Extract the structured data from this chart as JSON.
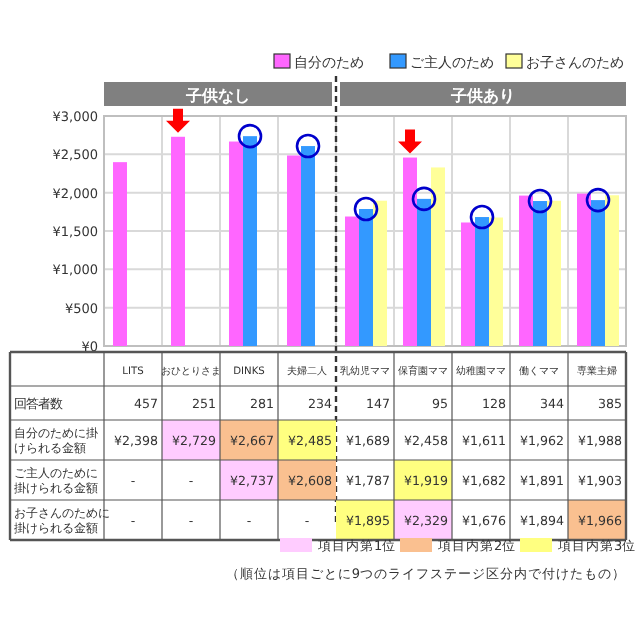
{
  "chart_data": {
    "type": "bar",
    "categories": [
      "LITS",
      "おひとりさま",
      "DINKS",
      "夫婦二人",
      "乳幼児ママ",
      "保育園ママ",
      "幼稚園ママ",
      "働くママ",
      "専業主婦"
    ],
    "series": [
      {
        "name": "自分のため",
        "color": "#ff66ff",
        "values": [
          2398,
          2729,
          2667,
          2485,
          1689,
          2458,
          1611,
          1962,
          1988
        ],
        "value_labels": [
          "¥2,398",
          "¥2,729",
          "¥2,667",
          "¥2,485",
          "¥1,689",
          "¥2,458",
          "¥1,611",
          "¥1,962",
          "¥1,988"
        ]
      },
      {
        "name": "ご主人のため",
        "color": "#3399ff",
        "values": [
          null,
          null,
          2737,
          2608,
          1787,
          1919,
          1682,
          1891,
          1903
        ],
        "value_labels": [
          "-",
          "-",
          "¥2,737",
          "¥2,608",
          "¥1,787",
          "¥1,919",
          "¥1,682",
          "¥1,891",
          "¥1,903"
        ]
      },
      {
        "name": "お子さんのため",
        "color": "#ffff99",
        "values": [
          null,
          null,
          null,
          null,
          1895,
          2329,
          1676,
          1894,
          1966
        ],
        "value_labels": [
          "-",
          "-",
          "-",
          "-",
          "¥1,895",
          "¥2,329",
          "¥1,676",
          "¥1,894",
          "¥1,966"
        ]
      }
    ],
    "ylim": [
      0,
      3000
    ],
    "yticks": [
      {
        "value": 0,
        "label": "¥0"
      },
      {
        "value": 500,
        "label": "¥500"
      },
      {
        "value": 1000,
        "label": "¥1,000"
      },
      {
        "value": 1500,
        "label": "¥1,500"
      },
      {
        "value": 2000,
        "label": "¥2,000"
      },
      {
        "value": 2500,
        "label": "¥2,500"
      },
      {
        "value": 3000,
        "label": "¥3,000"
      }
    ],
    "grid": true,
    "legend": "top right",
    "annotations": [
      "子供なし",
      "子供あり",
      "回答者数",
      "457",
      "251",
      "281",
      "234",
      "147",
      "95",
      "128",
      "344",
      "385",
      "自分のために掛けられる金額",
      "ご主人のために掛けられる金額",
      "お子さんのために掛けられる金額",
      "項目内第1位",
      "項目内第2位",
      "項目内第3位",
      "（順位は項目ごとに9つのライフステージ区分内で付けたもの）"
    ]
  }
}
